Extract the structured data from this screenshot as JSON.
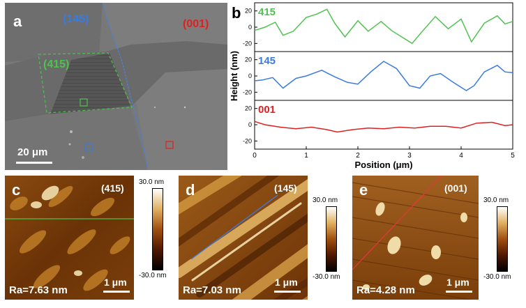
{
  "panel_a": {
    "label": "a",
    "labels": {
      "p145": "(145)",
      "p001": "(001)",
      "p415": "(415)"
    },
    "scale": "20 μm",
    "colors": {
      "p145": "#3a7be0",
      "p001": "#e02020",
      "p415": "#4ec24e"
    }
  },
  "panel_b": {
    "label": "b",
    "chart_data": {
      "type": "line",
      "xlabel": "Position (μm)",
      "ylabel": "Height (nm)",
      "xlim": [
        0,
        5
      ],
      "ylim": [
        -30,
        30
      ],
      "xticks": [
        "0",
        "1",
        "2",
        "3",
        "4",
        "5"
      ],
      "yticks": [
        "20",
        "0",
        "-20"
      ],
      "series": [
        {
          "name": "415",
          "color": "#4ec24e",
          "x": [
            0,
            0.2,
            0.4,
            0.55,
            0.75,
            1.0,
            1.2,
            1.4,
            1.55,
            1.75,
            2.0,
            2.2,
            2.45,
            2.65,
            2.85,
            3.05,
            3.25,
            3.5,
            3.75,
            4.0,
            4.2,
            4.45,
            4.7,
            4.85,
            5.0
          ],
          "y": [
            -4,
            0,
            6,
            -10,
            -5,
            12,
            16,
            22,
            5,
            -12,
            8,
            -5,
            7,
            -4,
            -12,
            -20,
            -5,
            13,
            -2,
            10,
            -18,
            5,
            14,
            4,
            7
          ]
        },
        {
          "name": "145",
          "color": "#3a7be0",
          "x": [
            0,
            0.15,
            0.35,
            0.55,
            0.8,
            1.0,
            1.3,
            1.55,
            1.8,
            2.0,
            2.25,
            2.5,
            2.75,
            3.0,
            3.2,
            3.4,
            3.6,
            3.85,
            4.1,
            4.25,
            4.45,
            4.7,
            4.85,
            5.0
          ],
          "y": [
            -6,
            -5,
            -2,
            -15,
            -3,
            0,
            7,
            -1,
            -8,
            -10,
            5,
            18,
            9,
            -12,
            -15,
            0,
            3,
            -8,
            -18,
            -12,
            5,
            13,
            5,
            4
          ]
        },
        {
          "name": "001",
          "color": "#e02020",
          "x": [
            0,
            0.2,
            0.5,
            0.8,
            1.1,
            1.4,
            1.6,
            1.9,
            2.2,
            2.5,
            2.8,
            3.1,
            3.4,
            3.7,
            4.0,
            4.3,
            4.6,
            4.85,
            5.0
          ],
          "y": [
            4,
            0,
            -3,
            -5,
            -3,
            -6,
            -9,
            -6,
            -4,
            -5,
            -3,
            -4,
            -2,
            -2,
            -4,
            2,
            3,
            -1,
            0
          ]
        }
      ]
    }
  },
  "panel_c": {
    "label": "c",
    "orientation": "(415)",
    "ra": "Ra=7.63 nm",
    "scale": "1 μm"
  },
  "panel_d": {
    "label": "d",
    "orientation": "(145)",
    "ra": "Ra=7.03 nm",
    "scale": "1 μm"
  },
  "panel_e": {
    "label": "e",
    "orientation": "(001)",
    "ra": "Ra=4.28 nm",
    "scale": "1 μm"
  },
  "colorbar": {
    "top": "30.0 nm",
    "bottom": "-30.0 nm"
  }
}
